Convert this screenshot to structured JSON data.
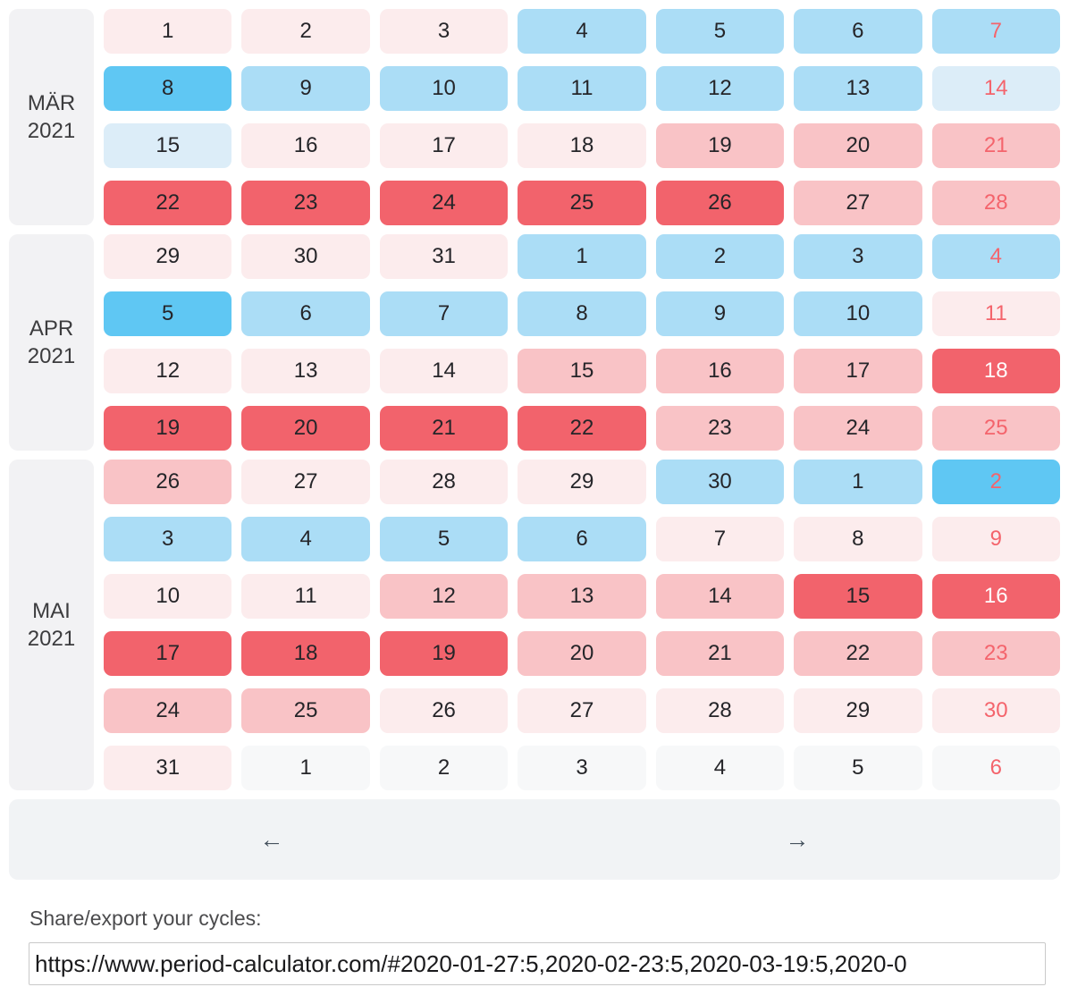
{
  "palette": {
    "R": "#f2636c",
    "P": "#f9c3c6",
    "L": "#fceced",
    "B2": "#5fc7f3",
    "B1": "#abddf6",
    "B0": "#dcedf8",
    "G": "#f7f8f9",
    "text_dark": "#252529",
    "text_red": "#f4646c",
    "text_white": "#ffffff"
  },
  "months": [
    {
      "label_line1": "MÄR",
      "label_line2": "2021",
      "weeks": [
        [
          {
            "d": "1",
            "bg": "L",
            "fg": "d"
          },
          {
            "d": "2",
            "bg": "L",
            "fg": "d"
          },
          {
            "d": "3",
            "bg": "L",
            "fg": "d"
          },
          {
            "d": "4",
            "bg": "B1",
            "fg": "d"
          },
          {
            "d": "5",
            "bg": "B1",
            "fg": "d"
          },
          {
            "d": "6",
            "bg": "B1",
            "fg": "d"
          },
          {
            "d": "7",
            "bg": "B1",
            "fg": "r"
          }
        ],
        [
          {
            "d": "8",
            "bg": "B2",
            "fg": "d"
          },
          {
            "d": "9",
            "bg": "B1",
            "fg": "d"
          },
          {
            "d": "10",
            "bg": "B1",
            "fg": "d"
          },
          {
            "d": "11",
            "bg": "B1",
            "fg": "d"
          },
          {
            "d": "12",
            "bg": "B1",
            "fg": "d"
          },
          {
            "d": "13",
            "bg": "B1",
            "fg": "d"
          },
          {
            "d": "14",
            "bg": "B0",
            "fg": "r"
          }
        ],
        [
          {
            "d": "15",
            "bg": "B0",
            "fg": "d"
          },
          {
            "d": "16",
            "bg": "L",
            "fg": "d"
          },
          {
            "d": "17",
            "bg": "L",
            "fg": "d"
          },
          {
            "d": "18",
            "bg": "L",
            "fg": "d"
          },
          {
            "d": "19",
            "bg": "P",
            "fg": "d"
          },
          {
            "d": "20",
            "bg": "P",
            "fg": "d"
          },
          {
            "d": "21",
            "bg": "P",
            "fg": "r"
          }
        ],
        [
          {
            "d": "22",
            "bg": "R",
            "fg": "d"
          },
          {
            "d": "23",
            "bg": "R",
            "fg": "d"
          },
          {
            "d": "24",
            "bg": "R",
            "fg": "d"
          },
          {
            "d": "25",
            "bg": "R",
            "fg": "d"
          },
          {
            "d": "26",
            "bg": "R",
            "fg": "d"
          },
          {
            "d": "27",
            "bg": "P",
            "fg": "d"
          },
          {
            "d": "28",
            "bg": "P",
            "fg": "r"
          }
        ]
      ]
    },
    {
      "label_line1": "APR",
      "label_line2": "2021",
      "weeks": [
        [
          {
            "d": "29",
            "bg": "L",
            "fg": "d"
          },
          {
            "d": "30",
            "bg": "L",
            "fg": "d"
          },
          {
            "d": "31",
            "bg": "L",
            "fg": "d"
          },
          {
            "d": "1",
            "bg": "B1",
            "fg": "d"
          },
          {
            "d": "2",
            "bg": "B1",
            "fg": "d"
          },
          {
            "d": "3",
            "bg": "B1",
            "fg": "d"
          },
          {
            "d": "4",
            "bg": "B1",
            "fg": "r"
          }
        ],
        [
          {
            "d": "5",
            "bg": "B2",
            "fg": "d"
          },
          {
            "d": "6",
            "bg": "B1",
            "fg": "d"
          },
          {
            "d": "7",
            "bg": "B1",
            "fg": "d"
          },
          {
            "d": "8",
            "bg": "B1",
            "fg": "d"
          },
          {
            "d": "9",
            "bg": "B1",
            "fg": "d"
          },
          {
            "d": "10",
            "bg": "B1",
            "fg": "d"
          },
          {
            "d": "11",
            "bg": "L",
            "fg": "r"
          }
        ],
        [
          {
            "d": "12",
            "bg": "L",
            "fg": "d"
          },
          {
            "d": "13",
            "bg": "L",
            "fg": "d"
          },
          {
            "d": "14",
            "bg": "L",
            "fg": "d"
          },
          {
            "d": "15",
            "bg": "P",
            "fg": "d"
          },
          {
            "d": "16",
            "bg": "P",
            "fg": "d"
          },
          {
            "d": "17",
            "bg": "P",
            "fg": "d"
          },
          {
            "d": "18",
            "bg": "R",
            "fg": "w"
          }
        ],
        [
          {
            "d": "19",
            "bg": "R",
            "fg": "d"
          },
          {
            "d": "20",
            "bg": "R",
            "fg": "d"
          },
          {
            "d": "21",
            "bg": "R",
            "fg": "d"
          },
          {
            "d": "22",
            "bg": "R",
            "fg": "d"
          },
          {
            "d": "23",
            "bg": "P",
            "fg": "d"
          },
          {
            "d": "24",
            "bg": "P",
            "fg": "d"
          },
          {
            "d": "25",
            "bg": "P",
            "fg": "r"
          }
        ]
      ]
    },
    {
      "label_line1": "MAI",
      "label_line2": "2021",
      "weeks": [
        [
          {
            "d": "26",
            "bg": "P",
            "fg": "d"
          },
          {
            "d": "27",
            "bg": "L",
            "fg": "d"
          },
          {
            "d": "28",
            "bg": "L",
            "fg": "d"
          },
          {
            "d": "29",
            "bg": "L",
            "fg": "d"
          },
          {
            "d": "30",
            "bg": "B1",
            "fg": "d"
          },
          {
            "d": "1",
            "bg": "B1",
            "fg": "d"
          },
          {
            "d": "2",
            "bg": "B2",
            "fg": "r"
          }
        ],
        [
          {
            "d": "3",
            "bg": "B1",
            "fg": "d"
          },
          {
            "d": "4",
            "bg": "B1",
            "fg": "d"
          },
          {
            "d": "5",
            "bg": "B1",
            "fg": "d"
          },
          {
            "d": "6",
            "bg": "B1",
            "fg": "d"
          },
          {
            "d": "7",
            "bg": "L",
            "fg": "d"
          },
          {
            "d": "8",
            "bg": "L",
            "fg": "d"
          },
          {
            "d": "9",
            "bg": "L",
            "fg": "r"
          }
        ],
        [
          {
            "d": "10",
            "bg": "L",
            "fg": "d"
          },
          {
            "d": "11",
            "bg": "L",
            "fg": "d"
          },
          {
            "d": "12",
            "bg": "P",
            "fg": "d"
          },
          {
            "d": "13",
            "bg": "P",
            "fg": "d"
          },
          {
            "d": "14",
            "bg": "P",
            "fg": "d"
          },
          {
            "d": "15",
            "bg": "R",
            "fg": "d"
          },
          {
            "d": "16",
            "bg": "R",
            "fg": "w"
          }
        ],
        [
          {
            "d": "17",
            "bg": "R",
            "fg": "d"
          },
          {
            "d": "18",
            "bg": "R",
            "fg": "d"
          },
          {
            "d": "19",
            "bg": "R",
            "fg": "d"
          },
          {
            "d": "20",
            "bg": "P",
            "fg": "d"
          },
          {
            "d": "21",
            "bg": "P",
            "fg": "d"
          },
          {
            "d": "22",
            "bg": "P",
            "fg": "d"
          },
          {
            "d": "23",
            "bg": "P",
            "fg": "r"
          }
        ],
        [
          {
            "d": "24",
            "bg": "P",
            "fg": "d"
          },
          {
            "d": "25",
            "bg": "P",
            "fg": "d"
          },
          {
            "d": "26",
            "bg": "L",
            "fg": "d"
          },
          {
            "d": "27",
            "bg": "L",
            "fg": "d"
          },
          {
            "d": "28",
            "bg": "L",
            "fg": "d"
          },
          {
            "d": "29",
            "bg": "L",
            "fg": "d"
          },
          {
            "d": "30",
            "bg": "L",
            "fg": "r"
          }
        ],
        [
          {
            "d": "31",
            "bg": "L",
            "fg": "d"
          },
          {
            "d": "1",
            "bg": "G",
            "fg": "d"
          },
          {
            "d": "2",
            "bg": "G",
            "fg": "d"
          },
          {
            "d": "3",
            "bg": "G",
            "fg": "d"
          },
          {
            "d": "4",
            "bg": "G",
            "fg": "d"
          },
          {
            "d": "5",
            "bg": "G",
            "fg": "d"
          },
          {
            "d": "6",
            "bg": "G",
            "fg": "r"
          }
        ]
      ]
    }
  ],
  "nav": {
    "prev": "←",
    "next": "→"
  },
  "share": {
    "label": "Share/export your cycles:",
    "url": "https://www.period-calculator.com/#2020-01-27:5,2020-02-23:5,2020-03-19:5,2020-0"
  }
}
